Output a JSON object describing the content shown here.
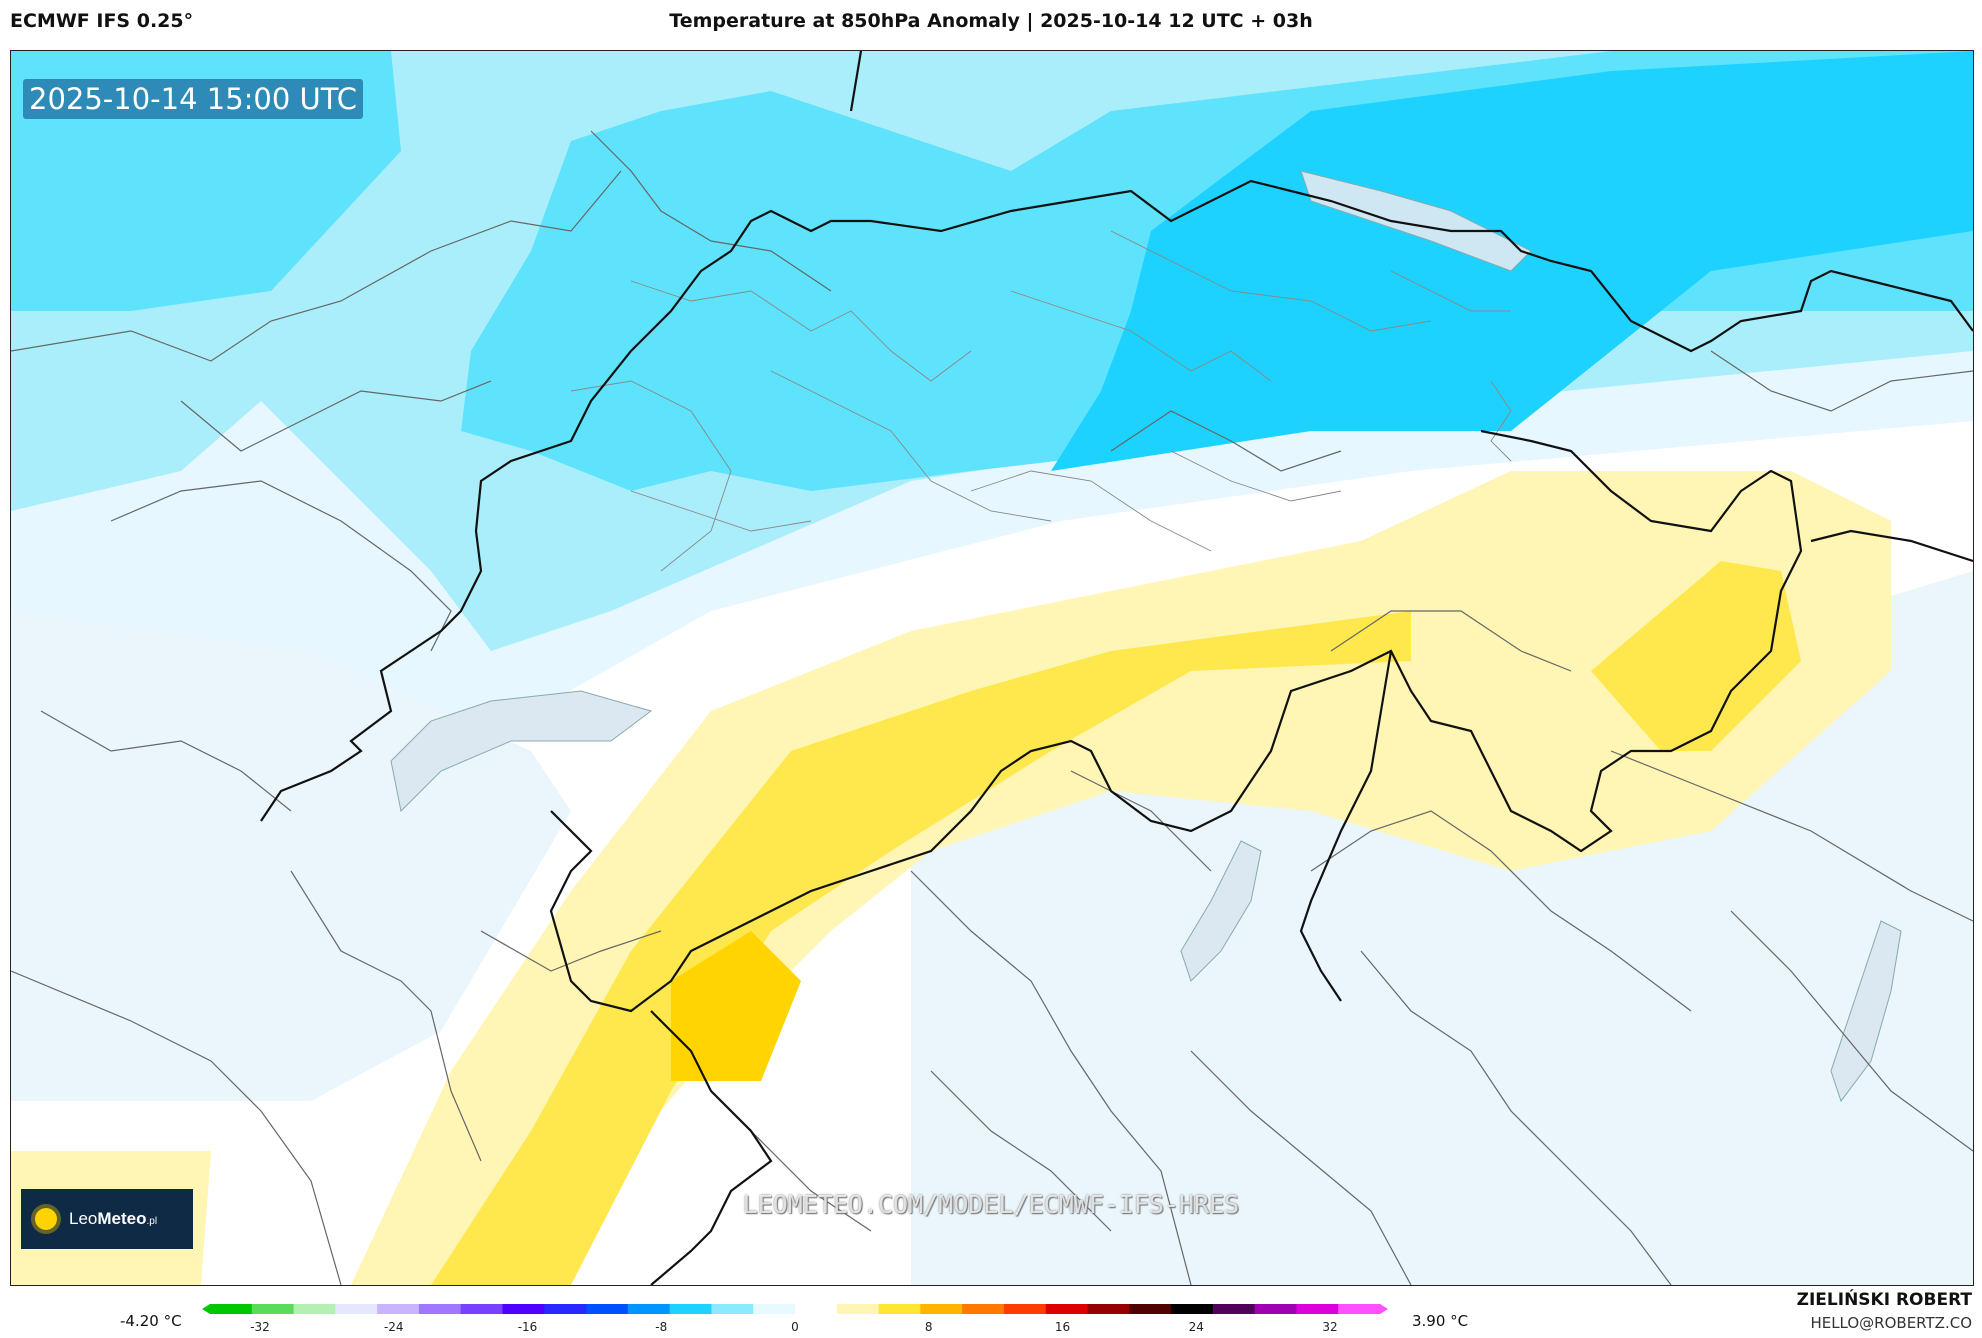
{
  "header": {
    "model": "ECMWF IFS 0.25°",
    "title": "Temperature at 850hPa Anomaly | 2025-10-14 12 UTC + 03h"
  },
  "map": {
    "valid_time": "2025-10-14 15:00 UTC",
    "watermark": "LEOMETEO.COM/MODEL/ECMWF-IFS-HRES",
    "logo": {
      "prefix": "Leo",
      "bold": "Meteo",
      "suffix": ".pl"
    }
  },
  "colorbar": {
    "min_label": "-4.20 °C",
    "max_label": "3.90 °C",
    "ticks": [
      "-32",
      "-24",
      "-16",
      "-8",
      "0",
      "8",
      "16",
      "24",
      "32"
    ],
    "colors": [
      "#00c800",
      "#5adc5a",
      "#b4f0b4",
      "#e6e6ff",
      "#c8b4ff",
      "#a078ff",
      "#7840ff",
      "#5000ff",
      "#2828ff",
      "#0050ff",
      "#0096ff",
      "#1ed2ff",
      "#8ceaff",
      "#e6faff",
      "#ffffff",
      "#fff5b4",
      "#ffe632",
      "#ffb400",
      "#ff7800",
      "#ff3c00",
      "#dc0000",
      "#960000",
      "#500000",
      "#000000",
      "#50005a",
      "#a000b4",
      "#dc00dc",
      "#ff50ff"
    ]
  },
  "footer": {
    "author": "ZIELIŃSKI ROBERT",
    "email": "HELLO@ROBERTZ.CO"
  }
}
